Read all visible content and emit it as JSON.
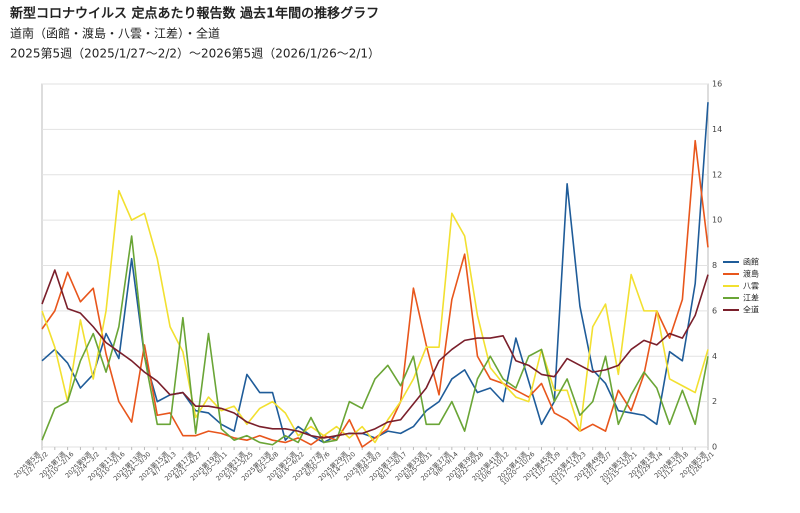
{
  "chart_data": {
    "type": "line",
    "title": "新型コロナウイルス 定点あたり報告数 過去1年間の推移グラフ",
    "subtitle": "道南（函館・渡島・八雲・江差）・全道",
    "period": "2025第5週（2025/1/27〜2/2）〜2026第5週（2026/1/26〜2/1）",
    "categories": [
      "2025第5週",
      null,
      "2025第7週",
      null,
      "2025第9週",
      null,
      "2025第11週",
      null,
      "2025第13週",
      null,
      "2025第15週",
      null,
      "2025第17週",
      null,
      "2025第19週",
      null,
      "2025第21週",
      null,
      "2025第23週",
      null,
      "2025第25週",
      null,
      "2025第27週",
      null,
      "2025第29週",
      null,
      "2025第31週",
      null,
      "2025第33週",
      null,
      "2025第35週",
      null,
      "2025第37週",
      null,
      "2025第39週",
      null,
      "2025第41週",
      null,
      "2025第43週",
      null,
      "2025第45週",
      null,
      "2025第47週",
      null,
      "2025第49週",
      null,
      "2025第51週",
      null,
      "2026第1週",
      null,
      "2026第3週",
      null,
      "2026第5週"
    ],
    "category_dates": [
      "1/27～2/2",
      null,
      "2/10～2/16",
      null,
      "2/24～3/2",
      null,
      "3/10～3/16",
      null,
      "3/24～3/30",
      null,
      "4/7～4/13",
      null,
      "4/21～4/27",
      null,
      "5/5～5/11",
      null,
      "5/19～5/25",
      null,
      "6/2～6/8",
      null,
      "6/16～6/22",
      null,
      "6/30～7/6",
      null,
      "7/14～7/20",
      null,
      "7/28～8/3",
      null,
      "8/11～8/17",
      null,
      "8/25～8/31",
      null,
      "9/8～9/14",
      null,
      "9/22～9/28",
      null,
      "10/6～10/12",
      null,
      "10/20～10/26",
      null,
      "11/3～11/9",
      null,
      "11/17～11/23",
      null,
      "12/1～12/7",
      null,
      "12/15～12/21",
      null,
      "12/29～1/4",
      null,
      "1/12～1/18",
      null,
      "1/26～2/1"
    ],
    "series": [
      {
        "name": "函館",
        "color": "#1f5c99",
        "values": [
          3.8,
          4.3,
          3.7,
          2.6,
          3.2,
          5.0,
          3.9,
          8.3,
          4.0,
          2.0,
          2.3,
          2.4,
          1.6,
          1.5,
          1.0,
          0.7,
          3.2,
          2.4,
          2.4,
          0.3,
          0.9,
          0.5,
          0.2,
          0.5,
          0.6,
          0.6,
          0.4,
          0.7,
          0.6,
          0.9,
          1.6,
          2.0,
          3.0,
          3.4,
          2.4,
          2.6,
          2.0,
          4.8,
          2.9,
          1.0,
          2.0,
          11.6,
          6.2,
          3.4,
          2.8,
          1.6,
          1.5,
          1.4,
          1.0,
          4.2,
          3.8,
          7.2,
          15.2
        ]
      },
      {
        "name": "渡島",
        "color": "#e8561c",
        "values": [
          5.2,
          6.0,
          7.7,
          6.4,
          7.0,
          4.1,
          2.0,
          1.1,
          4.5,
          1.4,
          1.5,
          0.5,
          0.5,
          0.7,
          0.6,
          0.4,
          0.3,
          0.5,
          0.3,
          0.2,
          0.4,
          0.1,
          0.5,
          0.3,
          1.2,
          0.0,
          0.4,
          0.8,
          2.0,
          7.0,
          4.5,
          2.3,
          6.5,
          8.5,
          4.0,
          3.0,
          2.8,
          2.5,
          2.2,
          2.8,
          1.5,
          1.2,
          0.7,
          1.0,
          0.7,
          2.5,
          1.6,
          3.2,
          6.0,
          4.8,
          6.5,
          13.5,
          8.8
        ]
      },
      {
        "name": "八雲",
        "color": "#f2e030",
        "values": [
          6.0,
          4.4,
          2.0,
          5.6,
          3.0,
          6.0,
          11.3,
          10.0,
          10.3,
          8.3,
          5.3,
          4.2,
          1.3,
          2.2,
          1.6,
          1.8,
          1.0,
          1.7,
          2.0,
          1.5,
          0.5,
          0.9,
          0.5,
          0.9,
          0.4,
          0.9,
          0.2,
          1.2,
          2.0,
          3.0,
          4.4,
          4.4,
          10.3,
          9.3,
          5.8,
          3.5,
          2.8,
          2.2,
          2.0,
          4.3,
          2.5,
          2.5,
          0.7,
          5.3,
          6.3,
          3.2,
          7.6,
          6.0,
          6.0,
          3.0,
          2.7,
          2.4,
          4.3
        ]
      },
      {
        "name": "江差",
        "color": "#6aa536",
        "values": [
          0.3,
          1.7,
          2.0,
          3.8,
          5.0,
          3.3,
          5.3,
          9.3,
          4.0,
          1.0,
          1.0,
          5.7,
          0.6,
          5.0,
          0.8,
          0.3,
          0.5,
          0.2,
          0.1,
          0.5,
          0.2,
          1.3,
          0.2,
          0.3,
          2.0,
          1.7,
          3.0,
          3.6,
          2.7,
          4.0,
          1.0,
          1.0,
          2.0,
          0.7,
          3.0,
          4.0,
          3.0,
          2.6,
          4.0,
          4.3,
          2.0,
          3.0,
          1.4,
          2.0,
          4.0,
          1.0,
          2.3,
          3.3,
          2.6,
          1.0,
          2.5,
          1.0,
          4.0
        ]
      },
      {
        "name": "全道",
        "color": "#7a1f2b",
        "values": [
          6.3,
          7.8,
          6.1,
          5.9,
          5.3,
          4.6,
          4.2,
          3.8,
          3.3,
          2.9,
          2.3,
          2.4,
          1.8,
          1.8,
          1.7,
          1.5,
          1.1,
          0.9,
          0.8,
          0.8,
          0.7,
          0.5,
          0.4,
          0.5,
          0.6,
          0.6,
          0.8,
          1.1,
          1.2,
          1.9,
          2.6,
          3.8,
          4.3,
          4.7,
          4.8,
          4.8,
          4.9,
          3.8,
          3.6,
          3.2,
          3.1,
          3.9,
          3.6,
          3.3,
          3.4,
          3.6,
          4.3,
          4.7,
          4.5,
          5.0,
          4.8,
          5.8,
          7.6
        ]
      }
    ],
    "ylim": [
      0,
      16
    ],
    "yticks": [
      0,
      2,
      4,
      6,
      8,
      10,
      12,
      14,
      16
    ],
    "grid": true
  }
}
